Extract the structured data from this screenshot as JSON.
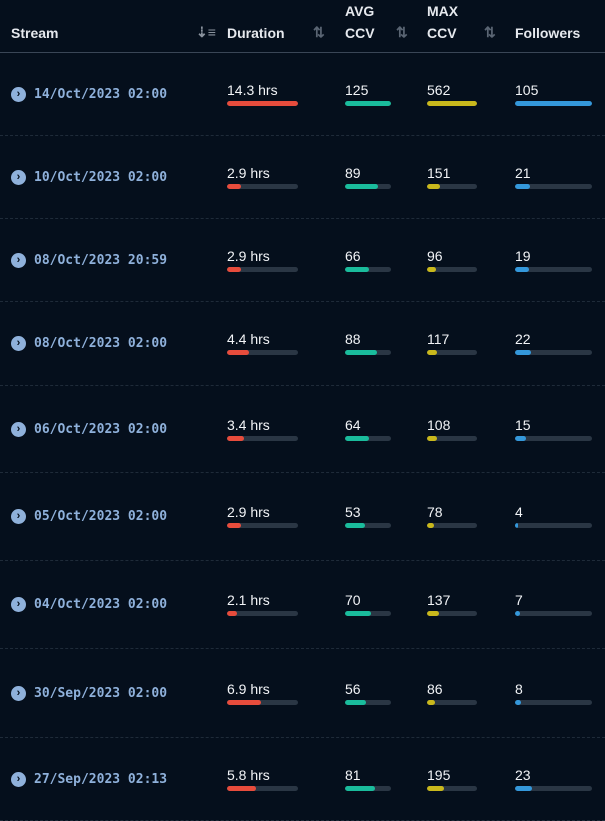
{
  "header": {
    "stream": "Stream",
    "duration": "Duration",
    "avg_ccv": [
      "AVG",
      "CCV"
    ],
    "max_ccv": [
      "MAX",
      "CCV"
    ],
    "followers": "Followers"
  },
  "colors": {
    "duration": "#e74c3c",
    "avg": "#1abc9c",
    "max": "#c9b81c",
    "followers": "#3498db"
  },
  "max_values": {
    "duration": 14.3,
    "avg": 125,
    "max": 562,
    "followers": 105
  },
  "rows": [
    {
      "stream": "14/Oct/2023 02:00",
      "duration": "14.3 hrs",
      "duration_value": 14.3,
      "avg_ccv": "125",
      "max_ccv": "562",
      "followers": "105"
    },
    {
      "stream": "10/Oct/2023 02:00",
      "duration": "2.9 hrs",
      "duration_value": 2.9,
      "avg_ccv": "89",
      "max_ccv": "151",
      "followers": "21"
    },
    {
      "stream": "08/Oct/2023 20:59",
      "duration": "2.9 hrs",
      "duration_value": 2.9,
      "avg_ccv": "66",
      "max_ccv": "96",
      "followers": "19"
    },
    {
      "stream": "08/Oct/2023 02:00",
      "duration": "4.4 hrs",
      "duration_value": 4.4,
      "avg_ccv": "88",
      "max_ccv": "117",
      "followers": "22"
    },
    {
      "stream": "06/Oct/2023 02:00",
      "duration": "3.4 hrs",
      "duration_value": 3.4,
      "avg_ccv": "64",
      "max_ccv": "108",
      "followers": "15"
    },
    {
      "stream": "05/Oct/2023 02:00",
      "duration": "2.9 hrs",
      "duration_value": 2.9,
      "avg_ccv": "53",
      "max_ccv": "78",
      "followers": "4"
    },
    {
      "stream": "04/Oct/2023 02:00",
      "duration": "2.1 hrs",
      "duration_value": 2.1,
      "avg_ccv": "70",
      "max_ccv": "137",
      "followers": "7"
    },
    {
      "stream": "30/Sep/2023 02:00",
      "duration": "6.9 hrs",
      "duration_value": 6.9,
      "avg_ccv": "56",
      "max_ccv": "86",
      "followers": "8"
    },
    {
      "stream": "27/Sep/2023 02:13",
      "duration": "5.8 hrs",
      "duration_value": 5.8,
      "avg_ccv": "81",
      "max_ccv": "195",
      "followers": "23"
    }
  ]
}
